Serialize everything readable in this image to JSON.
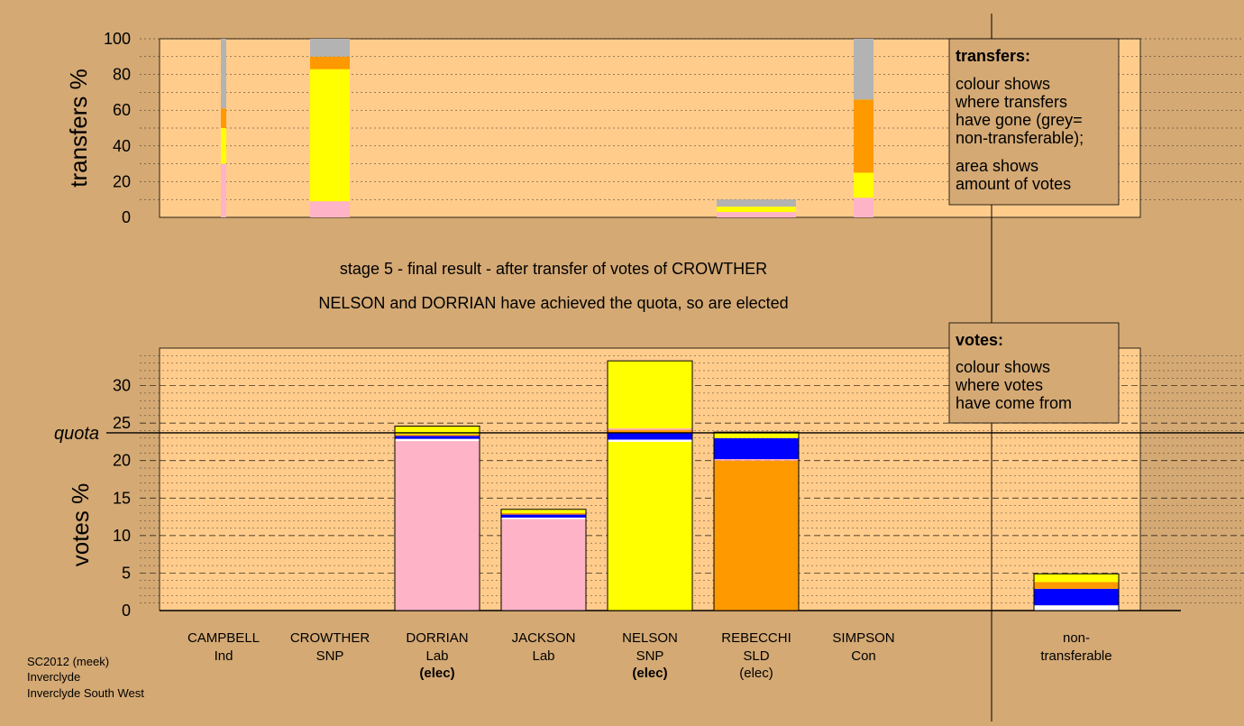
{
  "chart_data": [
    {
      "type": "bar",
      "name": "transfers",
      "ylabel": "transfers %",
      "ylim": [
        0,
        100
      ],
      "yticks": [
        "0",
        "20",
        "40",
        "60",
        "80",
        "100"
      ],
      "categories": [
        "CAMPBELL",
        "CROWTHER",
        "DORRIAN",
        "JACKSON",
        "NELSON",
        "REBECCHI",
        "SIMPSON"
      ],
      "bars": [
        {
          "candidate": "CAMPBELL",
          "segments": [
            {
              "color": "#ffb3c6",
              "value": 30
            },
            {
              "color": "#ffff00",
              "value": 20
            },
            {
              "color": "#ff9900",
              "value": 11
            },
            {
              "color": "#b3b3b3",
              "value": 39
            }
          ]
        },
        {
          "candidate": "CROWTHER",
          "segments": [
            {
              "color": "#ffb3c6",
              "value": 9
            },
            {
              "color": "#ffff00",
              "value": 74
            },
            {
              "color": "#ff9900",
              "value": 7
            },
            {
              "color": "#b3b3b3",
              "value": 10
            }
          ]
        },
        {
          "candidate": "REBECCHI",
          "segments": [
            {
              "color": "#ffb3c6",
              "value": 3
            },
            {
              "color": "#ffff00",
              "value": 3
            },
            {
              "color": "#b3b3b3",
              "value": 4
            }
          ]
        },
        {
          "candidate": "SIMPSON",
          "segments": [
            {
              "color": "#ffb3c6",
              "value": 11
            },
            {
              "color": "#ffff00",
              "value": 14
            },
            {
              "color": "#ff9900",
              "value": 41
            },
            {
              "color": "#b3b3b3",
              "value": 34
            }
          ]
        }
      ],
      "legend": {
        "title": "transfers:",
        "lines": [
          "colour shows",
          "where transfers",
          "have gone (grey=",
          "non-transferable);",
          "area shows",
          "amount of votes"
        ]
      }
    },
    {
      "type": "bar",
      "name": "votes",
      "ylabel": "votes %",
      "ylim": [
        0,
        35
      ],
      "yticks": [
        "0",
        "5",
        "10",
        "15",
        "20",
        "25",
        "30"
      ],
      "quota": 23.7,
      "quota_label": "quota",
      "categories": [
        {
          "name": "CAMPBELL",
          "party": "Ind",
          "status": ""
        },
        {
          "name": "CROWTHER",
          "party": "SNP",
          "status": ""
        },
        {
          "name": "DORRIAN",
          "party": "Lab",
          "status": "(elec)",
          "status_bold": true
        },
        {
          "name": "JACKSON",
          "party": "Lab",
          "status": ""
        },
        {
          "name": "NELSON",
          "party": "SNP",
          "status": "(elec)",
          "status_bold": true
        },
        {
          "name": "REBECCHI",
          "party": "SLD",
          "status": "(elec)",
          "status_bold": false
        },
        {
          "name": "SIMPSON",
          "party": "Con",
          "status": ""
        }
      ],
      "bars": [
        {
          "candidate": "DORRIAN",
          "segments": [
            {
              "color": "#ffb3c6",
              "value": 22.6
            },
            {
              "color": "#ffffff",
              "value": 0.3
            },
            {
              "color": "#0000ff",
              "value": 0.4
            },
            {
              "color": "#ff9900",
              "value": 0.2
            },
            {
              "color": "#ffff00",
              "value": 1.1
            }
          ]
        },
        {
          "candidate": "JACKSON",
          "segments": [
            {
              "color": "#ffb3c6",
              "value": 12.2
            },
            {
              "color": "#ffffff",
              "value": 0.2
            },
            {
              "color": "#0000ff",
              "value": 0.4
            },
            {
              "color": "#ff9900",
              "value": 0.2
            },
            {
              "color": "#ffff00",
              "value": 0.5
            }
          ]
        },
        {
          "candidate": "NELSON",
          "segments": [
            {
              "color": "#ffff00",
              "value": 22.5
            },
            {
              "color": "#ffffff",
              "value": 0.3
            },
            {
              "color": "#0000ff",
              "value": 0.9
            },
            {
              "color": "#ff9900",
              "value": 0.4
            },
            {
              "color": "#ffb3c6",
              "value": 0.2
            },
            {
              "color": "#ffff00",
              "value": 9.0
            }
          ]
        },
        {
          "candidate": "REBECCHI",
          "segments": [
            {
              "color": "#ff9900",
              "value": 20.0
            },
            {
              "color": "#ffb3c6",
              "value": 0.2
            },
            {
              "color": "#0000ff",
              "value": 2.8
            },
            {
              "color": "#ffff00",
              "value": 0.8
            }
          ]
        }
      ],
      "nontransferable": {
        "label_line1": "non-",
        "label_line2": "transferable",
        "segments": [
          {
            "color": "#ffffff",
            "value": 0.7
          },
          {
            "color": "#0000ff",
            "value": 2.2
          },
          {
            "color": "#ff9900",
            "value": 0.9
          },
          {
            "color": "#ffff00",
            "value": 1.1
          }
        ]
      },
      "legend": {
        "title": "votes:",
        "lines": [
          "colour shows",
          "where votes",
          "have come from"
        ]
      }
    }
  ],
  "captions": {
    "stage": "stage 5 - final result - after transfer of votes of CROWTHER",
    "result": "NELSON and DORRIAN have achieved the quota, so are elected"
  },
  "footer": [
    "SC2012 (meek)",
    "Inverclyde",
    "Inverclyde South West"
  ],
  "colors": {
    "background": "#d4a974",
    "plot_background": "#ffcc8c",
    "legend_background": "#d4a974"
  }
}
